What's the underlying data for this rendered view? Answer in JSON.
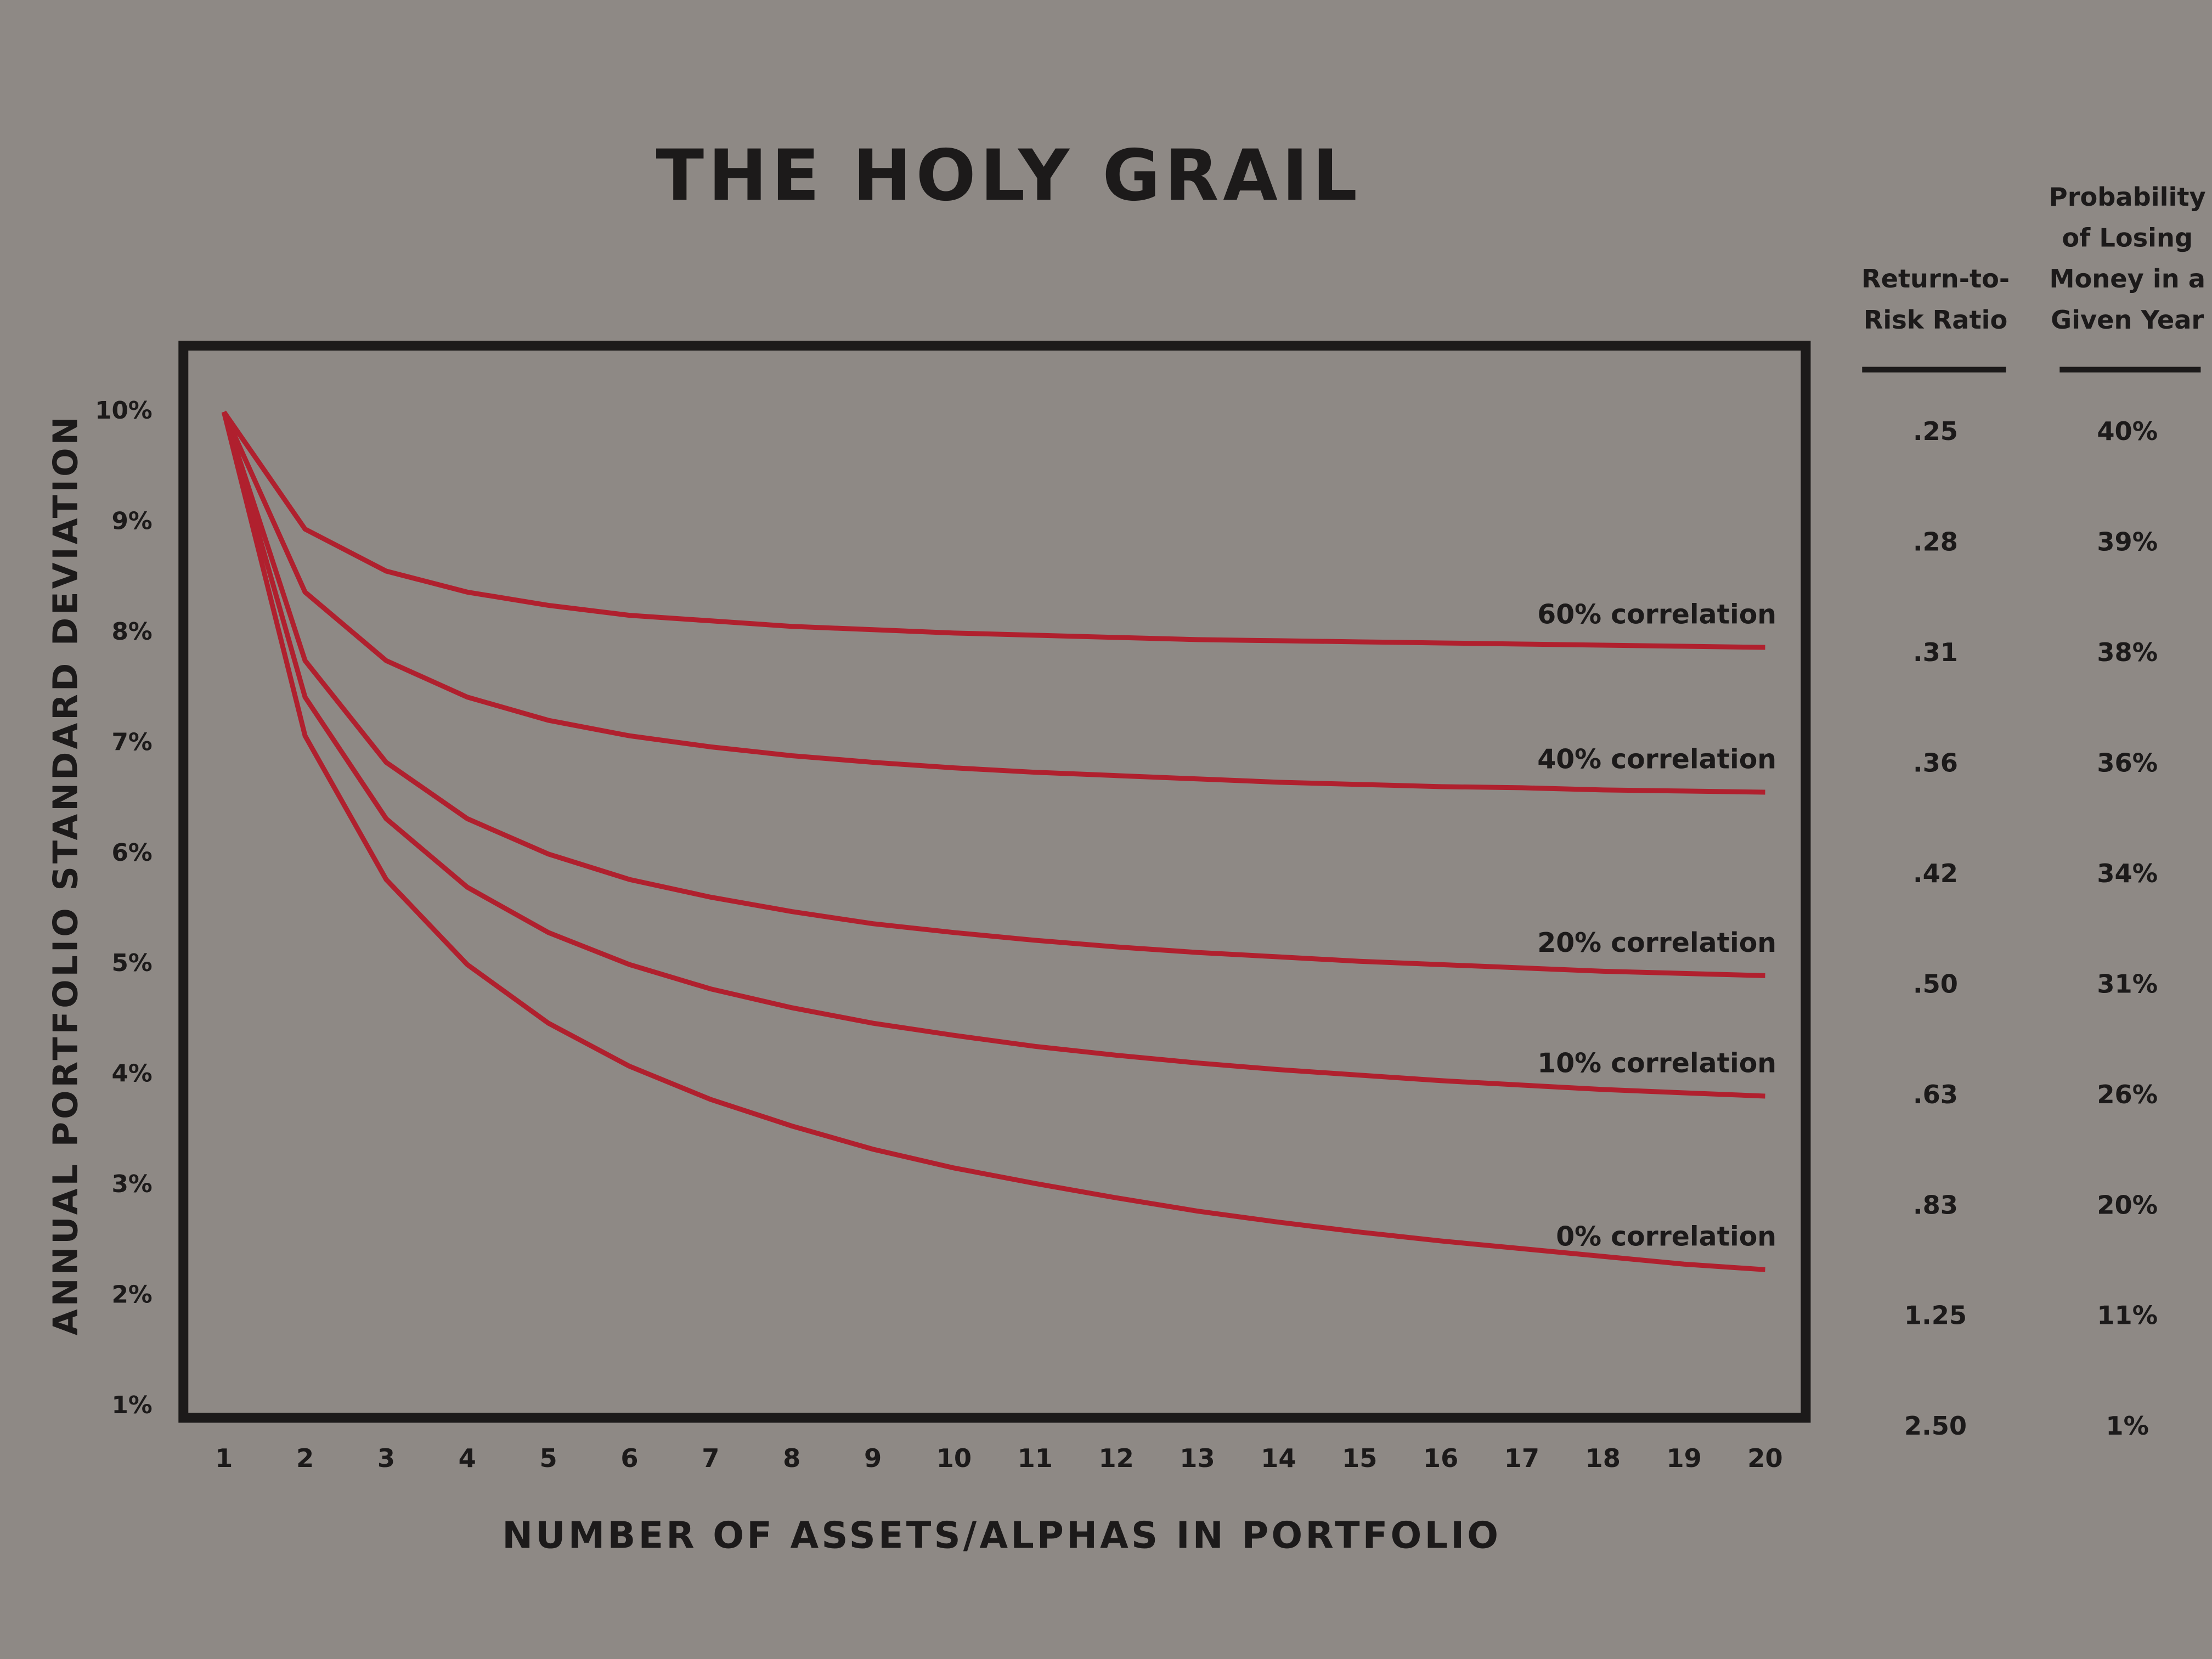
{
  "chart_data": {
    "type": "line",
    "title": "THE HOLY GRAIL",
    "xlabel": "NUMBER OF ASSETS/ALPHAS IN PORTFOLIO",
    "ylabel": "ANNUAL PORTFOLIO STANDARD DEVIATION",
    "x": [
      1,
      2,
      3,
      4,
      5,
      6,
      7,
      8,
      9,
      10,
      11,
      12,
      13,
      14,
      15,
      16,
      17,
      18,
      19,
      20
    ],
    "xlim": [
      0.5,
      20.5
    ],
    "xticks": [
      1,
      2,
      3,
      4,
      5,
      6,
      7,
      8,
      9,
      10,
      11,
      12,
      13,
      14,
      15,
      16,
      17,
      18,
      19,
      20
    ],
    "ylim": [
      0.9,
      10.6
    ],
    "yticks": [
      {
        "value": 10,
        "label": "10%"
      },
      {
        "value": 9,
        "label": "9%"
      },
      {
        "value": 8,
        "label": "8%"
      },
      {
        "value": 7,
        "label": "7%"
      },
      {
        "value": 6,
        "label": "6%"
      },
      {
        "value": 5,
        "label": "5%"
      },
      {
        "value": 4,
        "label": "4%"
      },
      {
        "value": 3,
        "label": "3%"
      },
      {
        "value": 2,
        "label": "2%"
      },
      {
        "value": 1,
        "label": "1%"
      }
    ],
    "series": [
      {
        "name": "60% correlation",
        "color": "#b0202e",
        "values": [
          10,
          8.94,
          8.56,
          8.37,
          8.25,
          8.16,
          8.11,
          8.06,
          8.03,
          8.0,
          7.98,
          7.96,
          7.94,
          7.93,
          7.92,
          7.91,
          7.9,
          7.89,
          7.88,
          7.87
        ]
      },
      {
        "name": "40% correlation",
        "color": "#b0202e",
        "values": [
          10,
          8.37,
          7.75,
          7.42,
          7.21,
          7.07,
          6.97,
          6.89,
          6.83,
          6.78,
          6.74,
          6.71,
          6.68,
          6.65,
          6.63,
          6.61,
          6.6,
          6.58,
          6.57,
          6.56
        ]
      },
      {
        "name": "20% correlation",
        "color": "#b0202e",
        "values": [
          10,
          7.75,
          6.83,
          6.32,
          6.0,
          5.77,
          5.61,
          5.48,
          5.37,
          5.29,
          5.22,
          5.16,
          5.11,
          5.07,
          5.03,
          5.0,
          4.97,
          4.94,
          4.92,
          4.9
        ]
      },
      {
        "name": "10% correlation",
        "color": "#b0202e",
        "values": [
          10,
          7.42,
          6.32,
          5.7,
          5.29,
          5.0,
          4.78,
          4.61,
          4.47,
          4.36,
          4.26,
          4.18,
          4.11,
          4.05,
          4.0,
          3.95,
          3.91,
          3.87,
          3.84,
          3.81
        ]
      },
      {
        "name": "0% correlation",
        "color": "#b0202e",
        "values": [
          10,
          7.07,
          5.77,
          5.0,
          4.47,
          4.08,
          3.78,
          3.54,
          3.33,
          3.16,
          3.02,
          2.89,
          2.77,
          2.67,
          2.58,
          2.5,
          2.43,
          2.36,
          2.29,
          2.24
        ]
      }
    ],
    "table": {
      "columns": [
        [
          "Return-to-",
          "Risk Ratio"
        ],
        [
          "Probability",
          "of Losing",
          "Money in a",
          "Given Year"
        ]
      ],
      "rows": [
        [
          ".25",
          "40%"
        ],
        [
          ".28",
          "39%"
        ],
        [
          ".31",
          "38%"
        ],
        [
          ".36",
          "36%"
        ],
        [
          ".42",
          "34%"
        ],
        [
          ".50",
          "31%"
        ],
        [
          ".63",
          "26%"
        ],
        [
          ".83",
          "20%"
        ],
        [
          "1.25",
          "11%"
        ],
        [
          "2.50",
          "1%"
        ]
      ]
    }
  }
}
